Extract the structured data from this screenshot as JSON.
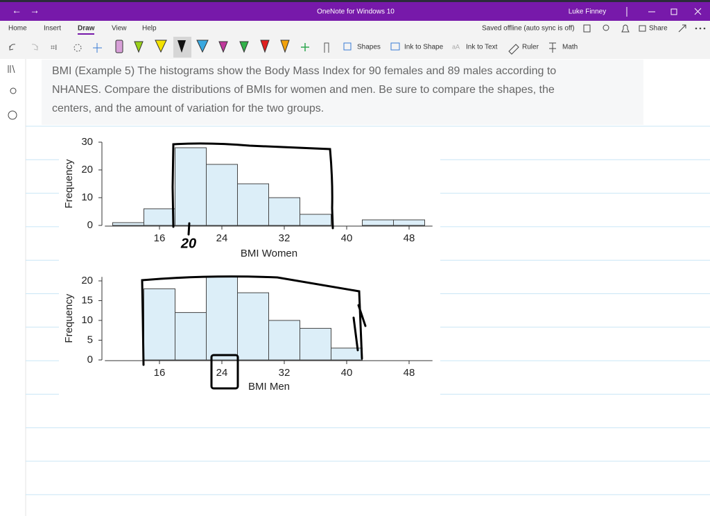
{
  "window": {
    "title": "OneNote for Windows 10",
    "user": "Luke Finney"
  },
  "menu": [
    "Home",
    "Insert",
    "Draw",
    "View",
    "Help"
  ],
  "status": "Saved offline (auto sync is off)",
  "share": "Share",
  "toolbar": [
    "Shapes",
    "Ink to Shape",
    "Ink to Text",
    "Ruler",
    "Math"
  ],
  "question": [
    "BMI (Example 5) The histograms show the Body Mass Index for 90 females and 89 males according to",
    "NHANES. Compare the distributions of BMIs for women and men. Be sure to compare the shapes, the",
    "centers, and the amount of variation for the two groups."
  ],
  "chart_data": [
    {
      "type": "histogram",
      "x_label": "BMI Women",
      "y_label": "Frequency",
      "color": "#dceef8",
      "bins": [
        10,
        14,
        18,
        22,
        26,
        30,
        34,
        38,
        42,
        46,
        50
      ],
      "values": [
        1,
        6,
        28,
        22,
        15,
        10,
        4,
        0,
        2,
        2
      ],
      "xlim": [
        9,
        51
      ],
      "xticks": [
        16,
        24,
        32,
        40,
        48
      ],
      "ylim": [
        0,
        30
      ],
      "yticks": [
        0,
        10,
        20,
        30
      ],
      "annotations": [
        "20"
      ]
    },
    {
      "type": "histogram",
      "x_label": "BMI Men",
      "y_label": "Frequency",
      "color": "#dceef8",
      "bins": [
        14,
        18,
        22,
        26,
        30,
        34,
        38,
        42
      ],
      "values": [
        18,
        12,
        21,
        17,
        10,
        8,
        3
      ],
      "xlim": [
        9,
        51
      ],
      "xticks": [
        16,
        24,
        32,
        40,
        48
      ],
      "ylim": [
        0,
        21
      ],
      "yticks": [
        0,
        5,
        10,
        15,
        20
      ]
    }
  ]
}
